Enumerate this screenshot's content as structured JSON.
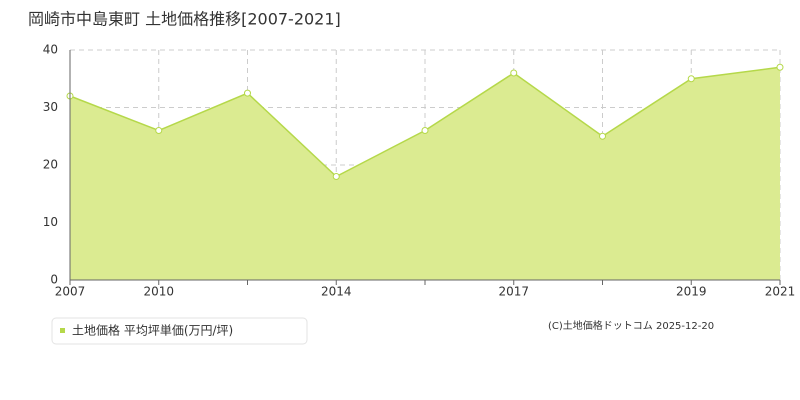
{
  "chart_data": {
    "type": "area",
    "title": "岡崎市中島東町 土地価格推移[2007-2021]",
    "categories": [
      "2007",
      "2010",
      null,
      "2014",
      null,
      "2017",
      null,
      "2019",
      "2021"
    ],
    "series": [
      {
        "name": "土地価格 平均坪単価(万円/坪)",
        "color": "#b5d84a",
        "fill": "#dbeb91",
        "values": [
          32,
          26,
          32.5,
          18,
          26,
          36,
          25,
          35,
          37
        ]
      }
    ],
    "ylim": [
      0,
      40
    ],
    "yticks": [
      0,
      10,
      20,
      30,
      40
    ],
    "grid": true,
    "credit": "(C)土地価格ドットコム 2025-12-20"
  }
}
